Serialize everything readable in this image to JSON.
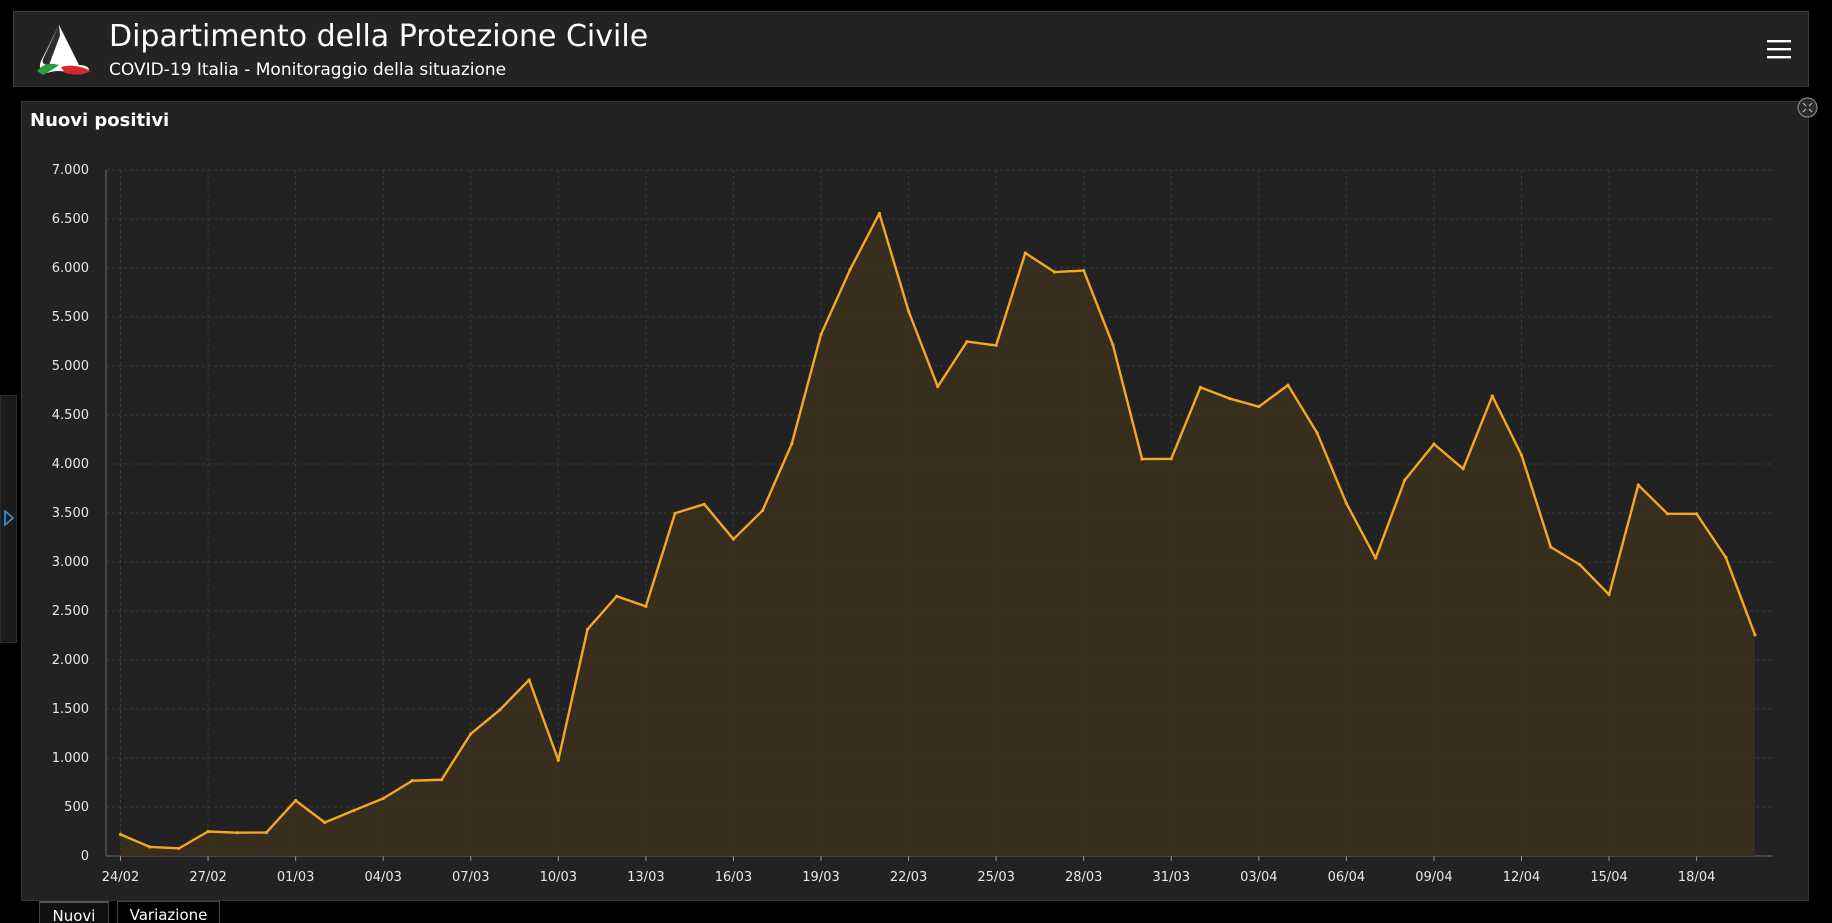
{
  "header": {
    "title": "Dipartimento della Protezione Civile",
    "subtitle": "COVID-19 Italia - Monitoraggio della situazione",
    "logo_icon": "protezione-civile-logo",
    "menu_icon": "hamburger-menu-icon"
  },
  "panel": {
    "title": "Nuovi positivi",
    "expand_icon": "expand-icon"
  },
  "tabs": [
    {
      "label": "Nuovi",
      "active": true
    },
    {
      "label": "Variazione",
      "active": false
    }
  ],
  "colors": {
    "line": "#f5a623",
    "area": "#3a2f1f",
    "background": "#222222",
    "grid": "#3a3a3a"
  },
  "chart_data": {
    "type": "area",
    "title": "Nuovi positivi",
    "xlabel": "",
    "ylabel": "",
    "ylim": [
      0,
      7000
    ],
    "yticks": [
      0,
      500,
      1000,
      1500,
      2000,
      2500,
      3000,
      3500,
      4000,
      4500,
      5000,
      5500,
      6000,
      6500,
      7000
    ],
    "ytick_labels": [
      "0",
      "500",
      "1.000",
      "1.500",
      "2.000",
      "2.500",
      "3.000",
      "3.500",
      "4.000",
      "4.500",
      "5.000",
      "5.500",
      "6.000",
      "6.500",
      "7.000"
    ],
    "xtick_labels": [
      "24/02",
      "27/02",
      "01/03",
      "04/03",
      "07/03",
      "10/03",
      "13/03",
      "16/03",
      "19/03",
      "22/03",
      "25/03",
      "28/03",
      "31/03",
      "03/04",
      "06/04",
      "09/04",
      "12/04",
      "15/04",
      "18/04"
    ],
    "xtick_every": 3,
    "grid": true,
    "series": [
      {
        "dates": [
          "24/02",
          "25/02",
          "26/02",
          "27/02",
          "28/02",
          "29/02",
          "01/03",
          "02/03",
          "03/03",
          "04/03",
          "05/03",
          "06/03",
          "07/03",
          "08/03",
          "09/03",
          "10/03",
          "11/03",
          "12/03",
          "13/03",
          "14/03",
          "15/03",
          "16/03",
          "17/03",
          "18/03",
          "19/03",
          "20/03",
          "21/03",
          "22/03",
          "23/03",
          "24/03",
          "25/03",
          "26/03",
          "27/03",
          "28/03",
          "29/03",
          "30/03",
          "31/03",
          "01/04",
          "02/04",
          "03/04",
          "04/04",
          "05/04",
          "06/04",
          "07/04",
          "08/04",
          "09/04",
          "10/04",
          "11/04",
          "12/04",
          "13/04",
          "14/04",
          "15/04",
          "16/04",
          "17/04",
          "18/04",
          "19/04",
          "20/04"
        ],
        "values": [
          221,
          93,
          78,
          250,
          238,
          240,
          566,
          342,
          466,
          587,
          769,
          778,
          1247,
          1492,
          1797,
          977,
          2313,
          2651,
          2547,
          3497,
          3590,
          3233,
          3526,
          4207,
          5322,
          5986,
          6557,
          5560,
          4789,
          5249,
          5210,
          6153,
          5959,
          5974,
          5217,
          4050,
          4053,
          4782,
          4668,
          4585,
          4805,
          4316,
          3599,
          3039,
          3836,
          4204,
          3951,
          4694,
          4092,
          3153,
          2972,
          2667,
          3786,
          3493,
          3491,
          3047,
          2256
        ]
      }
    ]
  }
}
